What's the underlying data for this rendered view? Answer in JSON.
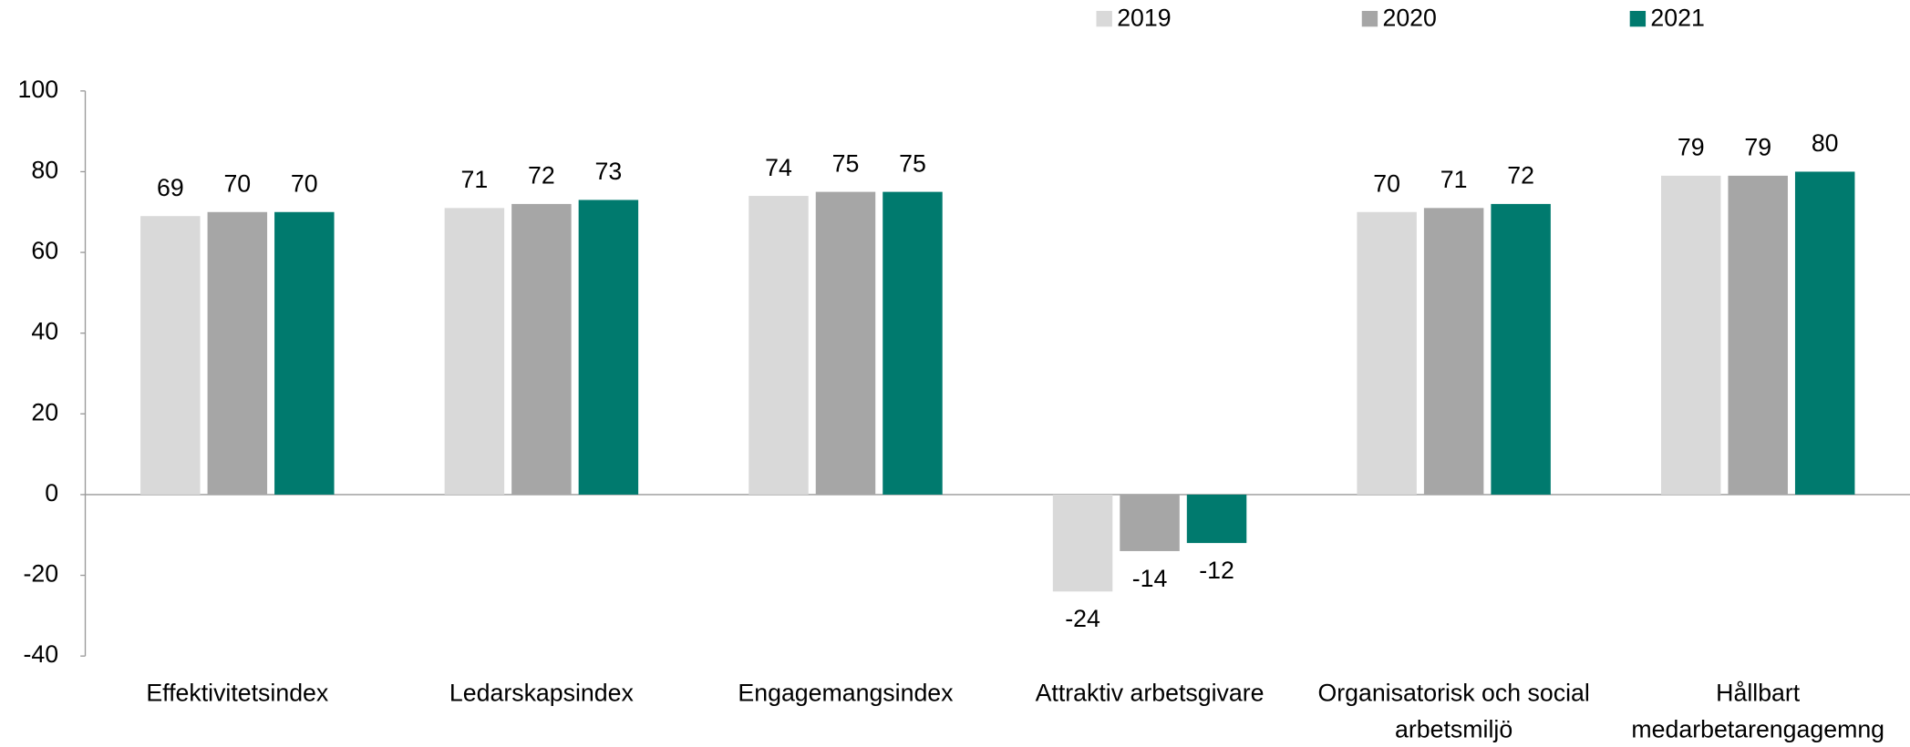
{
  "chart_data": {
    "type": "bar",
    "categories": [
      "Effektivitetsindex",
      "Ledarskapsindex",
      "Engagemangsindex",
      "Attraktiv arbetsgivare",
      "Organisatorisk och social arbetsmiljö",
      "Hållbart medarbetarengagemng"
    ],
    "series": [
      {
        "name": "2019",
        "color": "#d9d9d9",
        "values": [
          69,
          71,
          74,
          -24,
          70,
          79
        ]
      },
      {
        "name": "2020",
        "color": "#a6a6a6",
        "values": [
          70,
          72,
          75,
          -14,
          71,
          79
        ]
      },
      {
        "name": "2021",
        "color": "#007a6e",
        "values": [
          70,
          73,
          75,
          -12,
          72,
          80
        ]
      }
    ],
    "ylim": [
      -40,
      100
    ],
    "yticks": [
      -40,
      -20,
      0,
      20,
      40,
      60,
      80,
      100
    ],
    "legend": "top",
    "grid": false
  }
}
